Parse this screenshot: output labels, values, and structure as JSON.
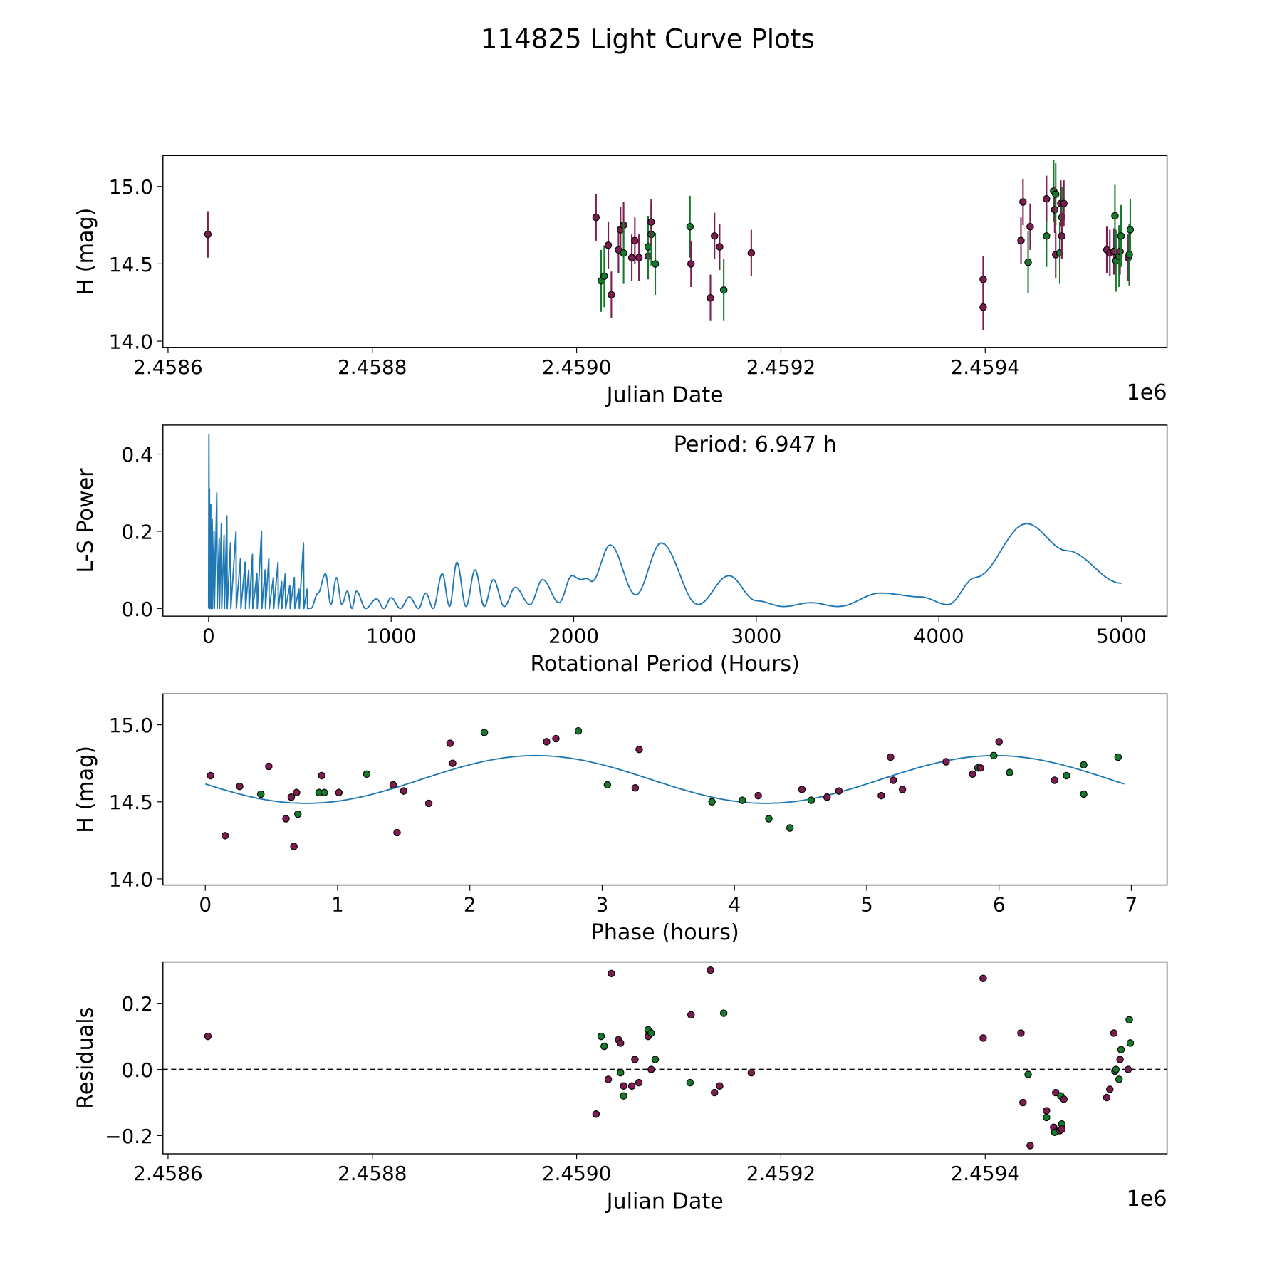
{
  "title": "114825 Light Curve Plots",
  "colors": {
    "a": "#7d1d4f",
    "b": "#157a2c",
    "line": "#1f77b4"
  },
  "chart_data": [
    {
      "type": "scatter",
      "name": "light-curve",
      "xlabel": "Julian Date",
      "ylabel": "H (mag)",
      "offset_label": "1e6",
      "xlim": [
        2458595,
        2459578
      ],
      "ylim": [
        13.96,
        15.2
      ],
      "xticks": [
        2458600,
        2458800,
        2459000,
        2459200,
        2459400
      ],
      "xtick_labels": [
        "2.4586",
        "2.4588",
        "2.4590",
        "2.4592",
        "2.4594"
      ],
      "yticks": [
        14.0,
        14.5,
        15.0
      ],
      "ytick_labels": [
        "14.0",
        "14.5",
        "15.0"
      ],
      "err": {
        "a": 0.15,
        "b": 0.2
      },
      "points": [
        [
          2458639,
          14.69,
          "a"
        ],
        [
          2459019,
          14.8,
          "a"
        ],
        [
          2459024,
          14.39,
          "b"
        ],
        [
          2459027,
          14.42,
          "b"
        ],
        [
          2459031,
          14.62,
          "a"
        ],
        [
          2459034,
          14.3,
          "a"
        ],
        [
          2459041,
          14.59,
          "a"
        ],
        [
          2459043,
          14.72,
          "a"
        ],
        [
          2459046,
          14.75,
          "a"
        ],
        [
          2459046,
          14.57,
          "b"
        ],
        [
          2459054,
          14.54,
          "a"
        ],
        [
          2459057,
          14.65,
          "a"
        ],
        [
          2459061,
          14.54,
          "a"
        ],
        [
          2459070,
          14.55,
          "a"
        ],
        [
          2459070,
          14.61,
          "b"
        ],
        [
          2459073,
          14.69,
          "b"
        ],
        [
          2459073,
          14.77,
          "a"
        ],
        [
          2459077,
          14.5,
          "b"
        ],
        [
          2459111,
          14.74,
          "b"
        ],
        [
          2459112,
          14.5,
          "a"
        ],
        [
          2459131,
          14.28,
          "a"
        ],
        [
          2459135,
          14.68,
          "a"
        ],
        [
          2459140,
          14.61,
          "a"
        ],
        [
          2459144,
          14.33,
          "b"
        ],
        [
          2459171,
          14.57,
          "a"
        ],
        [
          2459398,
          14.4,
          "a"
        ],
        [
          2459398,
          14.22,
          "a"
        ],
        [
          2459435,
          14.65,
          "a"
        ],
        [
          2459437,
          14.9,
          "a"
        ],
        [
          2459442,
          14.51,
          "b"
        ],
        [
          2459444,
          14.74,
          "a"
        ],
        [
          2459460,
          14.68,
          "b"
        ],
        [
          2459460,
          14.92,
          "a"
        ],
        [
          2459467,
          14.97,
          "b"
        ],
        [
          2459468,
          14.85,
          "a"
        ],
        [
          2459469,
          14.95,
          "b"
        ],
        [
          2459469,
          14.56,
          "a"
        ],
        [
          2459473,
          14.57,
          "b"
        ],
        [
          2459474,
          14.89,
          "a"
        ],
        [
          2459475,
          14.8,
          "b"
        ],
        [
          2459475,
          14.68,
          "a"
        ],
        [
          2459477,
          14.89,
          "a"
        ],
        [
          2459519,
          14.59,
          "a"
        ],
        [
          2459522,
          14.57,
          "a"
        ],
        [
          2459526,
          14.58,
          "a"
        ],
        [
          2459527,
          14.81,
          "b"
        ],
        [
          2459528,
          14.52,
          "b"
        ],
        [
          2459531,
          14.55,
          "b"
        ],
        [
          2459532,
          14.58,
          "a"
        ],
        [
          2459533,
          14.68,
          "b"
        ],
        [
          2459540,
          14.54,
          "a"
        ],
        [
          2459541,
          14.56,
          "b"
        ],
        [
          2459542,
          14.72,
          "b"
        ]
      ]
    },
    {
      "type": "line",
      "name": "periodogram",
      "xlabel": "Rotational Period (Hours)",
      "ylabel": "L-S Power",
      "annotation": "Period: 6.947 h",
      "xlim": [
        -250,
        5250
      ],
      "ylim": [
        -0.02,
        0.475
      ],
      "xticks": [
        0,
        1000,
        2000,
        3000,
        4000,
        5000
      ],
      "xtick_labels": [
        "0",
        "1000",
        "2000",
        "3000",
        "4000",
        "5000"
      ],
      "yticks": [
        0.0,
        0.2,
        0.4
      ],
      "ytick_labels": [
        "0.0",
        "0.2",
        "0.4"
      ],
      "spikes": [
        [
          2,
          0.45
        ],
        [
          5,
          0.31
        ],
        [
          12,
          0.27
        ],
        [
          20,
          0.23
        ],
        [
          30,
          0.2
        ],
        [
          45,
          0.3
        ],
        [
          58,
          0.18
        ],
        [
          70,
          0.22
        ],
        [
          85,
          0.19
        ],
        [
          100,
          0.24
        ],
        [
          120,
          0.17
        ],
        [
          150,
          0.2
        ],
        [
          175,
          0.13
        ],
        [
          200,
          0.12
        ],
        [
          220,
          0.1
        ],
        [
          240,
          0.14
        ],
        [
          265,
          0.09
        ],
        [
          290,
          0.2
        ],
        [
          310,
          0.1
        ],
        [
          330,
          0.13
        ],
        [
          355,
          0.08
        ],
        [
          380,
          0.12
        ],
        [
          400,
          0.07
        ],
        [
          420,
          0.09
        ],
        [
          445,
          0.06
        ],
        [
          470,
          0.08
        ],
        [
          495,
          0.05
        ],
        [
          520,
          0.17
        ],
        [
          540,
          0.05
        ]
      ],
      "smooth": [
        [
          560,
          0.0
        ],
        [
          600,
          0.04
        ],
        [
          640,
          0.09
        ],
        [
          670,
          0.01
        ],
        [
          700,
          0.08
        ],
        [
          730,
          0.01
        ],
        [
          760,
          0.045
        ],
        [
          785,
          0.0
        ],
        [
          810,
          0.045
        ],
        [
          860,
          0.0
        ],
        [
          920,
          0.025
        ],
        [
          960,
          0.0
        ],
        [
          1000,
          0.028
        ],
        [
          1050,
          0.0
        ],
        [
          1100,
          0.03
        ],
        [
          1150,
          0.0
        ],
        [
          1190,
          0.04
        ],
        [
          1230,
          0.0
        ],
        [
          1280,
          0.09
        ],
        [
          1320,
          0.005
        ],
        [
          1360,
          0.12
        ],
        [
          1410,
          0.005
        ],
        [
          1460,
          0.1
        ],
        [
          1510,
          0.005
        ],
        [
          1560,
          0.075
        ],
        [
          1620,
          0.005
        ],
        [
          1680,
          0.055
        ],
        [
          1760,
          0.01
        ],
        [
          1830,
          0.075
        ],
        [
          1920,
          0.015
        ],
        [
          1990,
          0.085
        ],
        [
          2040,
          0.075
        ],
        [
          2070,
          0.078
        ],
        [
          2100,
          0.07
        ],
        [
          2200,
          0.165
        ],
        [
          2340,
          0.035
        ],
        [
          2480,
          0.17
        ],
        [
          2680,
          0.01
        ],
        [
          2850,
          0.085
        ],
        [
          3000,
          0.02
        ],
        [
          3150,
          0.005
        ],
        [
          3300,
          0.015
        ],
        [
          3450,
          0.005
        ],
        [
          3680,
          0.04
        ],
        [
          3900,
          0.03
        ],
        [
          4050,
          0.01
        ],
        [
          4200,
          0.08
        ],
        [
          4480,
          0.22
        ],
        [
          4700,
          0.15
        ],
        [
          5000,
          0.065
        ]
      ]
    },
    {
      "type": "scatter",
      "name": "phased",
      "xlabel": "Phase (hours)",
      "ylabel": "H (mag)",
      "xlim": [
        -0.32,
        7.27
      ],
      "ylim": [
        13.96,
        15.2
      ],
      "xticks": [
        0,
        1,
        2,
        3,
        4,
        5,
        6,
        7
      ],
      "xtick_labels": [
        "0",
        "1",
        "2",
        "3",
        "4",
        "5",
        "6",
        "7"
      ],
      "yticks": [
        14.0,
        14.5,
        15.0
      ],
      "ytick_labels": [
        "14.0",
        "14.5",
        "15.0"
      ],
      "fit": {
        "mean": 14.645,
        "amp": 0.155,
        "period": 3.4735,
        "peak": 2.5,
        "range": [
          0,
          6.947
        ]
      },
      "points": [
        [
          0.04,
          14.67,
          "a"
        ],
        [
          0.15,
          14.28,
          "a"
        ],
        [
          0.26,
          14.6,
          "a"
        ],
        [
          0.42,
          14.55,
          "b"
        ],
        [
          0.48,
          14.73,
          "a"
        ],
        [
          0.61,
          14.39,
          "a"
        ],
        [
          0.65,
          14.53,
          "a"
        ],
        [
          0.67,
          14.21,
          "a"
        ],
        [
          0.69,
          14.56,
          "a"
        ],
        [
          0.7,
          14.42,
          "b"
        ],
        [
          0.86,
          14.56,
          "b"
        ],
        [
          0.88,
          14.67,
          "a"
        ],
        [
          0.9,
          14.56,
          "b"
        ],
        [
          1.01,
          14.56,
          "a"
        ],
        [
          1.22,
          14.68,
          "b"
        ],
        [
          1.42,
          14.61,
          "a"
        ],
        [
          1.45,
          14.3,
          "a"
        ],
        [
          1.5,
          14.57,
          "a"
        ],
        [
          1.69,
          14.49,
          "a"
        ],
        [
          1.85,
          14.88,
          "a"
        ],
        [
          1.87,
          14.75,
          "a"
        ],
        [
          2.11,
          14.95,
          "b"
        ],
        [
          2.58,
          14.89,
          "a"
        ],
        [
          2.65,
          14.91,
          "a"
        ],
        [
          2.82,
          14.96,
          "b"
        ],
        [
          3.04,
          14.61,
          "b"
        ],
        [
          3.25,
          14.59,
          "a"
        ],
        [
          3.28,
          14.84,
          "a"
        ],
        [
          3.83,
          14.5,
          "b"
        ],
        [
          4.06,
          14.51,
          "b"
        ],
        [
          4.18,
          14.54,
          "a"
        ],
        [
          4.26,
          14.39,
          "b"
        ],
        [
          4.42,
          14.33,
          "b"
        ],
        [
          4.51,
          14.58,
          "a"
        ],
        [
          4.58,
          14.51,
          "b"
        ],
        [
          4.7,
          14.53,
          "a"
        ],
        [
          4.79,
          14.57,
          "a"
        ],
        [
          5.11,
          14.54,
          "a"
        ],
        [
          5.18,
          14.79,
          "a"
        ],
        [
          5.2,
          14.64,
          "a"
        ],
        [
          5.27,
          14.58,
          "a"
        ],
        [
          5.6,
          14.76,
          "a"
        ],
        [
          5.8,
          14.68,
          "a"
        ],
        [
          5.84,
          14.72,
          "b"
        ],
        [
          5.86,
          14.72,
          "a"
        ],
        [
          5.96,
          14.8,
          "b"
        ],
        [
          6.0,
          14.89,
          "a"
        ],
        [
          6.08,
          14.69,
          "b"
        ],
        [
          6.42,
          14.64,
          "a"
        ],
        [
          6.51,
          14.67,
          "b"
        ],
        [
          6.64,
          14.74,
          "b"
        ],
        [
          6.64,
          14.55,
          "b"
        ],
        [
          6.9,
          14.79,
          "b"
        ]
      ]
    },
    {
      "type": "scatter",
      "name": "residuals",
      "xlabel": "Julian Date",
      "ylabel": "Residuals",
      "offset_label": "1e6",
      "xlim": [
        2458595,
        2459578
      ],
      "ylim": [
        -0.255,
        0.325
      ],
      "xticks": [
        2458600,
        2458800,
        2459000,
        2459200,
        2459400
      ],
      "xtick_labels": [
        "2.4586",
        "2.4588",
        "2.4590",
        "2.4592",
        "2.4594"
      ],
      "yticks": [
        -0.2,
        0.0,
        0.2
      ],
      "ytick_labels": [
        "−0.2",
        "0.0",
        "0.2"
      ],
      "zero_line": true,
      "points": [
        [
          2458639,
          0.1,
          "a"
        ],
        [
          2459019,
          -0.135,
          "a"
        ],
        [
          2459024,
          0.1,
          "b"
        ],
        [
          2459027,
          0.07,
          "b"
        ],
        [
          2459031,
          -0.03,
          "a"
        ],
        [
          2459034,
          0.29,
          "a"
        ],
        [
          2459041,
          0.09,
          "a"
        ],
        [
          2459043,
          0.08,
          "a"
        ],
        [
          2459043,
          -0.01,
          "b"
        ],
        [
          2459046,
          -0.05,
          "a"
        ],
        [
          2459046,
          -0.08,
          "b"
        ],
        [
          2459054,
          -0.05,
          "a"
        ],
        [
          2459057,
          0.03,
          "a"
        ],
        [
          2459061,
          -0.04,
          "a"
        ],
        [
          2459070,
          0.12,
          "b"
        ],
        [
          2459070,
          0.1,
          "a"
        ],
        [
          2459073,
          0.11,
          "b"
        ],
        [
          2459073,
          0.0,
          "a"
        ],
        [
          2459077,
          0.03,
          "b"
        ],
        [
          2459111,
          -0.04,
          "b"
        ],
        [
          2459112,
          0.165,
          "a"
        ],
        [
          2459131,
          0.3,
          "a"
        ],
        [
          2459135,
          -0.07,
          "a"
        ],
        [
          2459140,
          -0.05,
          "a"
        ],
        [
          2459144,
          0.17,
          "b"
        ],
        [
          2459171,
          -0.01,
          "a"
        ],
        [
          2459398,
          0.275,
          "a"
        ],
        [
          2459398,
          0.095,
          "a"
        ],
        [
          2459435,
          0.11,
          "a"
        ],
        [
          2459437,
          -0.1,
          "a"
        ],
        [
          2459442,
          -0.015,
          "b"
        ],
        [
          2459444,
          -0.23,
          "a"
        ],
        [
          2459460,
          -0.125,
          "a"
        ],
        [
          2459460,
          -0.145,
          "b"
        ],
        [
          2459467,
          -0.175,
          "a"
        ],
        [
          2459468,
          -0.19,
          "b"
        ],
        [
          2459469,
          -0.07,
          "a"
        ],
        [
          2459473,
          -0.185,
          "a"
        ],
        [
          2459474,
          -0.08,
          "b"
        ],
        [
          2459475,
          -0.165,
          "b"
        ],
        [
          2459475,
          -0.18,
          "a"
        ],
        [
          2459477,
          -0.09,
          "a"
        ],
        [
          2459519,
          -0.085,
          "a"
        ],
        [
          2459522,
          -0.06,
          "a"
        ],
        [
          2459526,
          0.11,
          "a"
        ],
        [
          2459527,
          -0.005,
          "b"
        ],
        [
          2459528,
          0.0,
          "b"
        ],
        [
          2459531,
          -0.03,
          "b"
        ],
        [
          2459532,
          0.03,
          "a"
        ],
        [
          2459533,
          0.06,
          "b"
        ],
        [
          2459540,
          0.0,
          "a"
        ],
        [
          2459541,
          0.15,
          "b"
        ],
        [
          2459542,
          0.08,
          "b"
        ]
      ]
    }
  ]
}
